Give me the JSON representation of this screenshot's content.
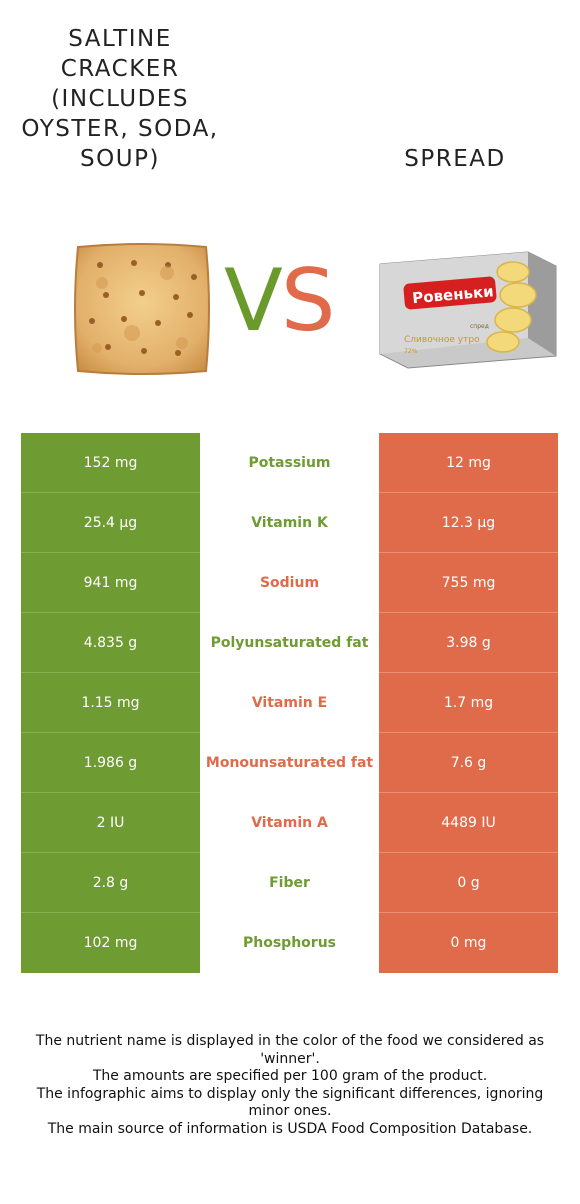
{
  "foods": {
    "left_name": "Saltine cracker (includes oyster, soda, soup)",
    "right_name": "Spread",
    "left_color": "#6f9b33",
    "right_color": "#e06b4a"
  },
  "vs": {
    "v": "V",
    "s": "S"
  },
  "rows": [
    {
      "nutrient": "Potassium",
      "left": "152 mg",
      "right": "12 mg",
      "winner": "left"
    },
    {
      "nutrient": "Vitamin K",
      "left": "25.4 µg",
      "right": "12.3 µg",
      "winner": "left"
    },
    {
      "nutrient": "Sodium",
      "left": "941 mg",
      "right": "755 mg",
      "winner": "right"
    },
    {
      "nutrient": "Polyunsaturated fat",
      "left": "4.835 g",
      "right": "3.98 g",
      "winner": "left"
    },
    {
      "nutrient": "Vitamin E",
      "left": "1.15 mg",
      "right": "1.7 mg",
      "winner": "right"
    },
    {
      "nutrient": "Monounsaturated fat",
      "left": "1.986 g",
      "right": "7.6 g",
      "winner": "right"
    },
    {
      "nutrient": "Vitamin A",
      "left": "2 IU",
      "right": "4489 IU",
      "winner": "right"
    },
    {
      "nutrient": "Fiber",
      "left": "2.8 g",
      "right": "0 g",
      "winner": "left"
    },
    {
      "nutrient": "Phosphorus",
      "left": "102 mg",
      "right": "0 mg",
      "winner": "left"
    }
  ],
  "footnote": [
    "The nutrient name is displayed in the color of the food we considered as 'winner'.",
    "The amounts are specified per 100 gram of the product.",
    "The infographic aims to display only the significant differences, ignoring minor ones.",
    "The main source of information is USDA Food Composition Database."
  ],
  "product_label": {
    "brand": "Ровеньки",
    "subtitle": "Сливочное утро",
    "small": "спред",
    "fat": "72%"
  }
}
